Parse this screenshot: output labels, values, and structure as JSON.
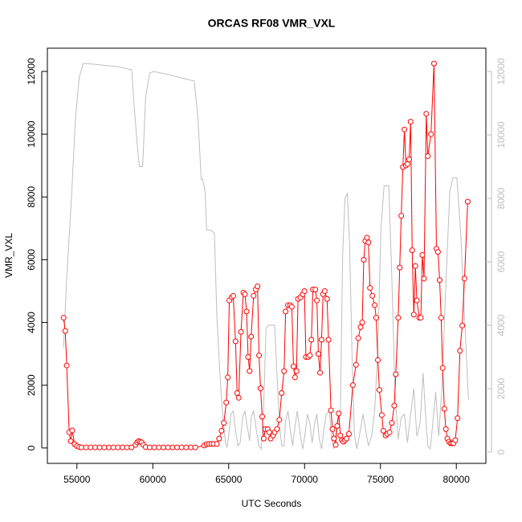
{
  "chart_data": {
    "type": "line",
    "title": "ORCAS RF08 VMR_VXL",
    "x_label": "UTC Seconds",
    "y_label": "VMR_VXL",
    "xlim": [
      53054,
      81946
    ],
    "ylim": [
      -490,
      12740
    ],
    "y2lim": [
      -354,
      12734
    ],
    "xticks": [
      55000,
      60000,
      65000,
      70000,
      75000,
      80000
    ],
    "yticks": [
      0,
      2000,
      4000,
      6000,
      8000,
      10000,
      12000
    ],
    "y2ticks": [
      0,
      2000,
      4000,
      6000,
      8000,
      10000,
      12000
    ],
    "series": [
      {
        "color": "#bebebe",
        "axis": "y2",
        "marker": "none",
        "x": [
          54120,
          54330,
          54640,
          54900,
          55150,
          55410,
          55670,
          56700,
          57730,
          58610,
          58760,
          58970,
          59120,
          59330,
          59530,
          59790,
          60050,
          61080,
          61850,
          62730,
          62980,
          63190,
          63290,
          63450,
          63550,
          63810,
          64060,
          64220,
          64420,
          64630,
          64790,
          64890,
          64990,
          65150,
          65300,
          65450,
          65610,
          65760,
          65920,
          66070,
          66230,
          66380,
          66480,
          66640,
          66850,
          67000,
          67150,
          67310,
          67460,
          67620,
          68030,
          68180,
          68340,
          68490,
          68650,
          68750,
          68910,
          69060,
          69210,
          69370,
          69520,
          69730,
          69880,
          70040,
          70190,
          70350,
          70500,
          70660,
          70810,
          70970,
          71120,
          71270,
          71430,
          71630,
          71790,
          71940,
          72150,
          72360,
          72510,
          72660,
          72820,
          72970,
          73130,
          73280,
          73440,
          73640,
          73850,
          74060,
          74210,
          74420,
          74620,
          74830,
          75030,
          75240,
          75550,
          75750,
          75960,
          76170,
          76370,
          76580,
          76780,
          76990,
          77200,
          77400,
          77610,
          77810,
          77970,
          78120,
          78280,
          78430,
          78640,
          78840,
          79050,
          79310,
          79570,
          79770,
          80030,
          80290,
          80540,
          80800
        ],
        "values": [
          3300,
          5500,
          8000,
          10500,
          11800,
          12250,
          12250,
          12200,
          12150,
          12050,
          11000,
          9700,
          9000,
          9000,
          11200,
          11950,
          12000,
          11900,
          11800,
          11700,
          10500,
          8600,
          8600,
          8200,
          7000,
          7000,
          6900,
          4300,
          2500,
          1000,
          300,
          150,
          500,
          1200,
          1300,
          700,
          200,
          300,
          1100,
          1300,
          800,
          350,
          1100,
          1300,
          600,
          200,
          100,
          1500,
          3900,
          4000,
          4000,
          2500,
          900,
          200,
          200,
          1000,
          1300,
          700,
          200,
          800,
          1300,
          500,
          100,
          600,
          1200,
          900,
          300,
          900,
          1200,
          400,
          100,
          700,
          1200,
          1300,
          400,
          100,
          1000,
          1300,
          6200,
          8000,
          8150,
          6500,
          3000,
          600,
          100,
          600,
          1200,
          600,
          200,
          500,
          1300,
          3300,
          7000,
          8400,
          8400,
          5500,
          1900,
          400,
          1100,
          1200,
          300,
          1200,
          2000,
          500,
          900,
          2500,
          1200,
          200,
          100,
          800,
          1900,
          500,
          2000,
          5300,
          8200,
          8650,
          8650,
          6900,
          4300,
          1650
        ]
      },
      {
        "color": "#ff0000",
        "marker": "circle",
        "x": [
          54120,
          54230,
          54330,
          54490,
          54590,
          54690,
          54850,
          55000,
          55150,
          55300,
          55600,
          55900,
          56200,
          56500,
          56800,
          57100,
          57400,
          57700,
          58000,
          58300,
          58600,
          58860,
          58970,
          59070,
          59170,
          59270,
          59380,
          59530,
          59800,
          60100,
          60400,
          60700,
          61000,
          61300,
          61600,
          61900,
          62200,
          62500,
          62800,
          63390,
          63550,
          63700,
          63860,
          64010,
          64220,
          64370,
          64530,
          64680,
          64840,
          64940,
          65040,
          65200,
          65300,
          65450,
          65560,
          65660,
          65810,
          65970,
          66070,
          66180,
          66280,
          66380,
          66480,
          66640,
          66790,
          66900,
          67000,
          67100,
          67210,
          67310,
          67410,
          67570,
          67670,
          67770,
          67930,
          68030,
          68180,
          68340,
          68490,
          68650,
          68750,
          68910,
          69060,
          69160,
          69270,
          69370,
          69470,
          69570,
          69730,
          69880,
          69990,
          70090,
          70240,
          70350,
          70450,
          70550,
          70710,
          70810,
          70910,
          71020,
          71120,
          71220,
          71330,
          71480,
          71580,
          71740,
          71840,
          71940,
          72050,
          72150,
          72250,
          72360,
          72460,
          72560,
          72660,
          72770,
          72920,
          73180,
          73390,
          73540,
          73690,
          73800,
          73900,
          74000,
          74110,
          74210,
          74310,
          74470,
          74620,
          74720,
          74830,
          74930,
          75090,
          75190,
          75340,
          75450,
          75600,
          75750,
          75910,
          76010,
          76170,
          76270,
          76370,
          76480,
          76580,
          76680,
          76780,
          76890,
          76990,
          77090,
          77200,
          77300,
          77400,
          77560,
          77660,
          77760,
          77870,
          78020,
          78120,
          78330,
          78530,
          78690,
          78790,
          78900,
          79000,
          79100,
          79210,
          79310,
          79410,
          79510,
          79620,
          79720,
          79820,
          79930,
          80080,
          80240,
          80390,
          80540,
          80750
        ],
        "values": [
          4150,
          3730,
          2630,
          500,
          220,
          560,
          120,
          60,
          30,
          20,
          20,
          20,
          20,
          20,
          20,
          20,
          20,
          20,
          20,
          20,
          20,
          100,
          180,
          220,
          200,
          180,
          100,
          30,
          20,
          20,
          20,
          20,
          20,
          20,
          20,
          20,
          20,
          20,
          20,
          80,
          120,
          130,
          130,
          130,
          130,
          300,
          550,
          800,
          1450,
          2250,
          4700,
          4800,
          4850,
          3400,
          1750,
          1600,
          3700,
          4950,
          4900,
          4350,
          2900,
          2450,
          3550,
          4850,
          5050,
          5150,
          2950,
          1900,
          1000,
          300,
          600,
          600,
          500,
          300,
          400,
          500,
          600,
          900,
          1750,
          2450,
          4350,
          4550,
          4550,
          4500,
          2600,
          2250,
          2450,
          4750,
          4800,
          4900,
          5000,
          2900,
          2900,
          2950,
          3450,
          5050,
          5050,
          4700,
          3000,
          2400,
          3450,
          4900,
          5000,
          4750,
          3450,
          1200,
          600,
          300,
          100,
          700,
          1100,
          400,
          250,
          200,
          250,
          300,
          450,
          2000,
          2650,
          3500,
          3850,
          4000,
          6000,
          6600,
          6700,
          6550,
          5100,
          4850,
          4550,
          4150,
          2800,
          1850,
          1050,
          550,
          400,
          450,
          500,
          800,
          1350,
          2350,
          4150,
          5750,
          7400,
          8950,
          10150,
          9000,
          9050,
          9200,
          10400,
          6300,
          4250,
          5800,
          4700,
          4150,
          4150,
          6150,
          5400,
          10650,
          9300,
          10000,
          12250,
          6350,
          6250,
          5350,
          4150,
          2550,
          1250,
          600,
          300,
          200,
          150,
          150,
          150,
          250,
          950,
          3100,
          3900,
          5400,
          7850
        ]
      }
    ]
  }
}
